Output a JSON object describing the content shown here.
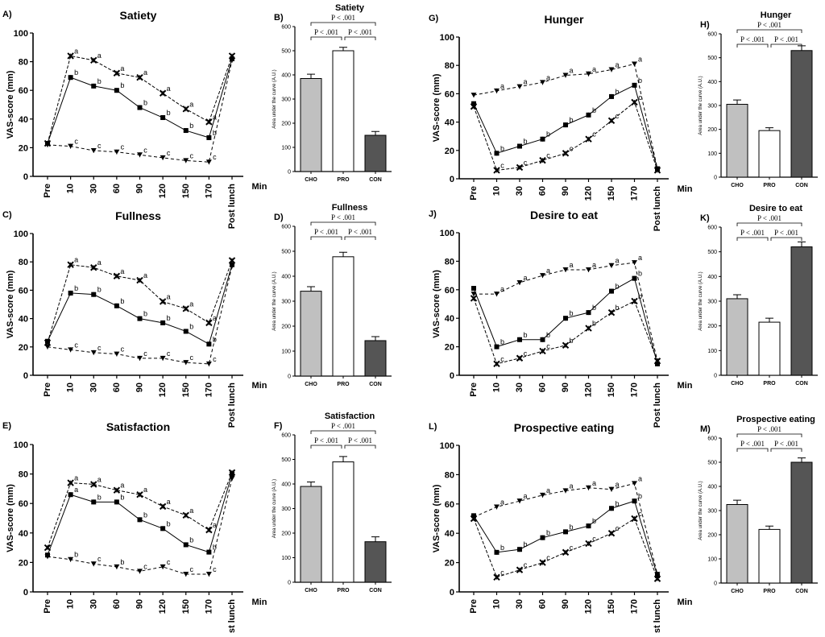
{
  "x_labels": [
    "Pre",
    "10",
    "30",
    "60",
    "90",
    "120",
    "150",
    "170",
    "Post lunch"
  ],
  "x_unit": "Min",
  "line_ylabel": "VAS-score (mm)",
  "line_ylim": [
    0,
    100
  ],
  "line_yticks": [
    0,
    20,
    40,
    60,
    80,
    100
  ],
  "bar_ylabel": "Area under the curve (A.U.)",
  "bar_ylim": [
    0,
    600
  ],
  "bar_yticks": [
    0,
    100,
    200,
    300,
    400,
    500,
    600
  ],
  "bar_categories": [
    "CHO",
    "PRO",
    "CON"
  ],
  "colors": {
    "CHO": "#c0c0c0",
    "PRO": "#ffffff",
    "CON": "#555555",
    "axis": "#000000"
  },
  "markers": {
    "CHO": "square",
    "PRO": "x-cross",
    "CON": "triangle-down"
  },
  "chart_data": [
    {
      "type": "line",
      "panel": "A)",
      "title": "Satiety",
      "series": [
        {
          "group": "PRO",
          "values": [
            23,
            84,
            81,
            72,
            69,
            58,
            47,
            38,
            84
          ],
          "letters": [
            "",
            "a",
            "a",
            "a",
            "a",
            "a",
            "a",
            "a",
            ""
          ]
        },
        {
          "group": "CHO",
          "values": [
            23,
            69,
            63,
            60,
            48,
            41,
            32,
            27,
            82
          ],
          "letters": [
            "",
            "b",
            "b",
            "b",
            "b",
            "b",
            "b",
            "b",
            ""
          ]
        },
        {
          "group": "CON",
          "values": [
            22,
            21,
            18,
            17,
            15,
            13,
            11,
            10,
            81
          ],
          "letters": [
            "",
            "c",
            "c",
            "c",
            "c",
            "c",
            "c",
            "c",
            ""
          ]
        }
      ]
    },
    {
      "type": "bar",
      "panel": "B)",
      "title": "Satiety",
      "values": [
        385,
        500,
        150
      ],
      "errors": [
        18,
        14,
        16
      ],
      "pvalues": [
        "P < .001",
        "P < .001",
        "P < .001"
      ]
    },
    {
      "type": "line",
      "panel": "G)",
      "title": "Hunger",
      "series": [
        {
          "group": "CON",
          "values": [
            59,
            62,
            65,
            68,
            73,
            74,
            77,
            81,
            7
          ],
          "letters": [
            "",
            "a",
            "a",
            "a",
            "a",
            "a",
            "a",
            "a",
            ""
          ]
        },
        {
          "group": "CHO",
          "values": [
            53,
            18,
            23,
            28,
            38,
            45,
            58,
            66,
            7
          ],
          "letters": [
            "",
            "b",
            "b",
            "b",
            "b",
            "b",
            "b",
            "b",
            ""
          ]
        },
        {
          "group": "PRO",
          "values": [
            51,
            6,
            8,
            13,
            18,
            28,
            41,
            54,
            6
          ],
          "letters": [
            "",
            "c",
            "c",
            "c",
            "c",
            "c",
            "c",
            "c",
            ""
          ]
        }
      ]
    },
    {
      "type": "bar",
      "panel": "H)",
      "title": "Hunger",
      "values": [
        305,
        195,
        530
      ],
      "errors": [
        18,
        12,
        20
      ],
      "pvalues": [
        "P < .001",
        "P < .001",
        "P < .001"
      ]
    },
    {
      "type": "line",
      "panel": "C)",
      "title": "Fullness",
      "series": [
        {
          "group": "PRO",
          "values": [
            23,
            78,
            76,
            70,
            67,
            52,
            47,
            37,
            81
          ],
          "letters": [
            "",
            "a",
            "a",
            "a",
            "a",
            "a",
            "a",
            "a",
            ""
          ]
        },
        {
          "group": "CHO",
          "values": [
            24,
            58,
            57,
            49,
            40,
            37,
            31,
            22,
            78
          ],
          "letters": [
            "",
            "b",
            "b",
            "b",
            "b",
            "b",
            "b",
            "b",
            ""
          ]
        },
        {
          "group": "CON",
          "values": [
            20,
            18,
            16,
            15,
            12,
            12,
            9,
            8,
            77
          ],
          "letters": [
            "",
            "c",
            "c",
            "c",
            "c",
            "c",
            "c",
            "c",
            ""
          ]
        }
      ]
    },
    {
      "type": "bar",
      "panel": "D)",
      "title": "Fullness",
      "values": [
        340,
        478,
        142
      ],
      "errors": [
        18,
        18,
        16
      ],
      "pvalues": [
        "P < .001",
        "P < .001",
        "P < .001"
      ]
    },
    {
      "type": "line",
      "panel": "J)",
      "title": "Desire to eat",
      "series": [
        {
          "group": "CON",
          "values": [
            57,
            57,
            65,
            70,
            74,
            74,
            77,
            79,
            10
          ],
          "letters": [
            "",
            "a",
            "a",
            "a",
            "a",
            "a",
            "a",
            "a",
            ""
          ]
        },
        {
          "group": "CHO",
          "values": [
            61,
            20,
            25,
            25,
            40,
            44,
            59,
            68,
            8
          ],
          "letters": [
            "",
            "b",
            "b",
            "b",
            "b",
            "b",
            "b",
            "b",
            ""
          ]
        },
        {
          "group": "PRO",
          "values": [
            54,
            8,
            12,
            17,
            21,
            33,
            44,
            52,
            10
          ],
          "letters": [
            "",
            "c",
            "c",
            "c",
            "b",
            "b",
            "b",
            "b",
            ""
          ]
        }
      ]
    },
    {
      "type": "bar",
      "panel": "K)",
      "title": "Desire to eat",
      "values": [
        310,
        215,
        520
      ],
      "errors": [
        16,
        16,
        20
      ],
      "pvalues": [
        "P < .001",
        "P < .001",
        "P < .001"
      ]
    },
    {
      "type": "line",
      "panel": "E)",
      "title": "Satisfaction",
      "series": [
        {
          "group": "PRO",
          "values": [
            30,
            74,
            73,
            69,
            66,
            58,
            52,
            42,
            81
          ],
          "letters": [
            "",
            "a",
            "a",
            "a",
            "a",
            "a",
            "a",
            "a",
            ""
          ]
        },
        {
          "group": "CHO",
          "values": [
            25,
            66,
            61,
            61,
            49,
            43,
            32,
            27,
            80
          ],
          "letters": [
            "",
            "a",
            "b",
            "b",
            "b",
            "b",
            "b",
            "b",
            ""
          ]
        },
        {
          "group": "CON",
          "values": [
            24,
            22,
            19,
            17,
            14,
            17,
            12,
            12,
            77
          ],
          "letters": [
            "",
            "b",
            "c",
            "b",
            "c",
            "c",
            "c",
            "c",
            ""
          ]
        }
      ]
    },
    {
      "type": "bar",
      "panel": "F)",
      "title": "Satisfaction",
      "values": [
        390,
        490,
        165
      ],
      "errors": [
        18,
        22,
        20
      ],
      "pvalues": [
        "P < .001",
        "P < .001",
        "P < .001"
      ]
    },
    {
      "type": "line",
      "panel": "L)",
      "title": "Prospective eating",
      "series": [
        {
          "group": "CON",
          "values": [
            51,
            58,
            62,
            66,
            69,
            71,
            70,
            74,
            12
          ],
          "letters": [
            "",
            "a",
            "a",
            "a",
            "a",
            "a",
            "a",
            "a",
            ""
          ]
        },
        {
          "group": "CHO",
          "values": [
            52,
            27,
            29,
            37,
            41,
            45,
            57,
            62,
            11
          ],
          "letters": [
            "",
            "b",
            "b",
            "b",
            "b",
            "b",
            "b",
            "b",
            ""
          ]
        },
        {
          "group": "PRO",
          "values": [
            50,
            10,
            15,
            20,
            27,
            33,
            40,
            50,
            9
          ],
          "letters": [
            "",
            "c",
            "c",
            "c",
            "c",
            "c",
            "c",
            "c",
            ""
          ]
        }
      ]
    },
    {
      "type": "bar",
      "panel": "M)",
      "title": "Prospective eating",
      "values": [
        325,
        222,
        500
      ],
      "errors": [
        18,
        14,
        18
      ],
      "pvalues": [
        "P < .001",
        "P < .001",
        "P < .001"
      ]
    }
  ]
}
